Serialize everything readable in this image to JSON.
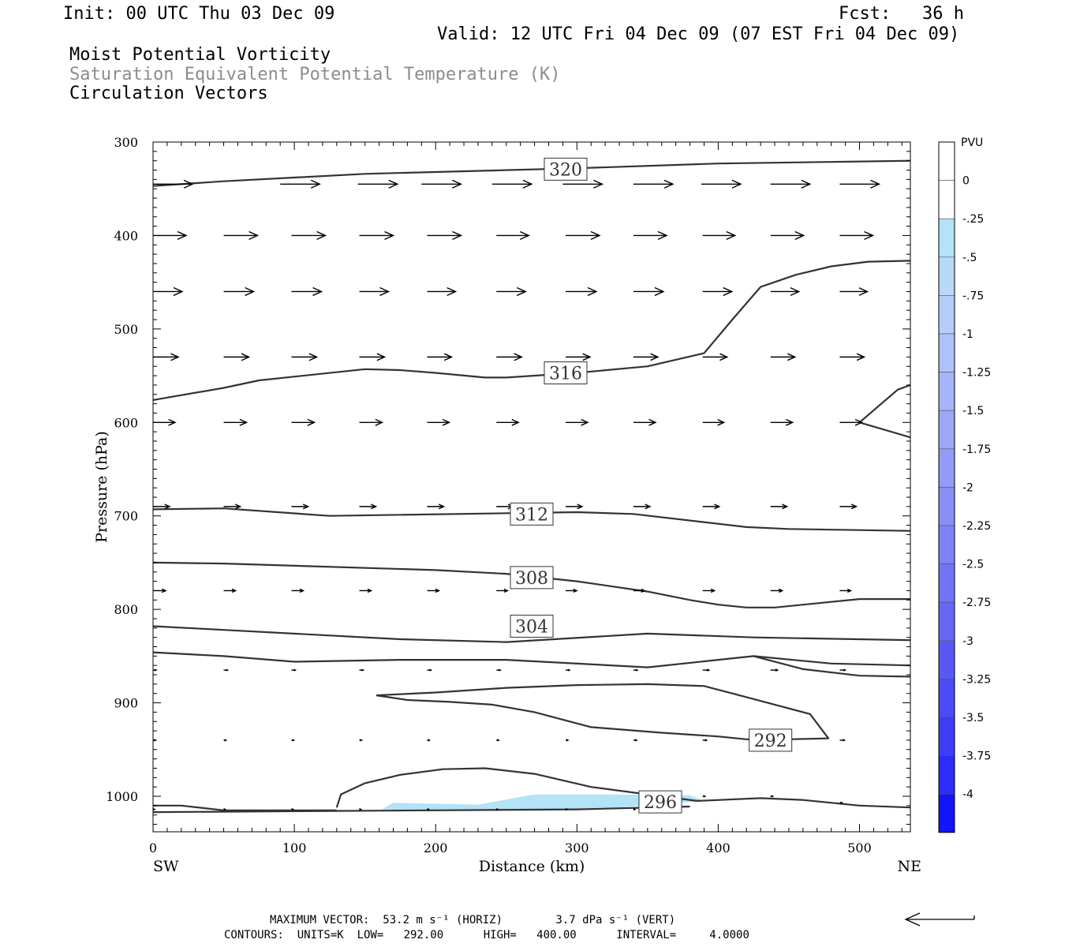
{
  "header": {
    "init": "Init: 00 UTC Thu 03 Dec 09",
    "fcst": "Fcst:   36 h",
    "valid": "Valid: 12 UTC Fri 04 Dec 09 (07 EST Fri 04 Dec 09)",
    "field1": "Moist Potential Vorticity",
    "field2": "Saturation Equivalent Potential Temperature (K)",
    "field3": "Circulation Vectors"
  },
  "colors": {
    "field2_text": "#8c8c8c",
    "contour": "#333333",
    "shade": "#b4e2f6",
    "border": "#000000"
  },
  "footer": {
    "max_vector": "MAXIMUM VECTOR:  53.2 m s⁻¹ (HORIZ)        3.7 dPa s⁻¹ (VERT)",
    "contours": "CONTOURS:  UNITS=K  LOW=   292.00      HIGH=   400.00      INTERVAL=     4.0000"
  },
  "chart_data": {
    "type": "cross-section",
    "xlabel": "Distance (km)",
    "ylabel": "Pressure (hPa)",
    "x_range": [
      0,
      536
    ],
    "y_range": [
      300,
      1038
    ],
    "x_ticks": [
      0,
      100,
      200,
      300,
      400,
      500
    ],
    "x_tick_labels": [
      "0",
      "100",
      "200",
      "300",
      "400",
      "500"
    ],
    "y_ticks": [
      300,
      400,
      500,
      600,
      700,
      800,
      900,
      1000
    ],
    "y_tick_labels": [
      "300",
      "400",
      "500",
      "600",
      "700",
      "800",
      "900",
      "1000"
    ],
    "endpoints": {
      "left": "SW",
      "right": "NE"
    },
    "colorbar": {
      "title": "PVU",
      "levels": [
        "0",
        "-.25",
        "-.5",
        "-.75",
        "-1",
        "-1.25",
        "-1.5",
        "-1.75",
        "-2",
        "-2.25",
        "-2.5",
        "-2.75",
        "-3",
        "-3.25",
        "-3.5",
        "-3.75",
        "-4"
      ],
      "colors": [
        "#ffffff",
        "#ffffff",
        "#b4e2f6",
        "#b8d9f7",
        "#b4cef7",
        "#adc2f7",
        "#a6b5f7",
        "#9da7f6",
        "#949bf6",
        "#8a8ef6",
        "#7f81f7",
        "#7373f7",
        "#6667f7",
        "#5958f7",
        "#4b4bf7",
        "#3d3df8",
        "#2c2df9",
        "#1414fb"
      ]
    },
    "contours": [
      {
        "label": "320",
        "points": [
          [
            0,
            347
          ],
          [
            50,
            342
          ],
          [
            150,
            334
          ],
          [
            300,
            328
          ],
          [
            400,
            323
          ],
          [
            536,
            320
          ]
        ]
      },
      {
        "label": "",
        "points": [
          [
            0,
            576
          ],
          [
            50,
            563
          ],
          [
            75,
            555
          ],
          [
            150,
            543
          ],
          [
            175,
            544
          ],
          [
            200,
            547
          ],
          [
            235,
            552
          ],
          [
            250,
            552
          ],
          [
            300,
            547
          ],
          [
            350,
            540
          ],
          [
            390,
            526
          ],
          [
            410,
            490
          ],
          [
            430,
            455
          ],
          [
            455,
            442
          ],
          [
            480,
            433
          ],
          [
            506,
            428
          ],
          [
            536,
            427
          ]
        ]
      },
      {
        "label": "",
        "points": [
          [
            500,
            600
          ],
          [
            527,
            565
          ],
          [
            536,
            560
          ]
        ]
      },
      {
        "label": "",
        "points": [
          [
            500,
            600
          ],
          [
            536,
            616
          ]
        ]
      },
      {
        "label": "312",
        "points": [
          [
            0,
            693
          ],
          [
            50,
            692
          ],
          [
            125,
            700
          ],
          [
            300,
            696
          ],
          [
            340,
            698
          ],
          [
            420,
            712
          ],
          [
            450,
            714
          ],
          [
            536,
            716
          ]
        ]
      },
      {
        "label": "308",
        "points": [
          [
            0,
            750
          ],
          [
            50,
            751
          ],
          [
            200,
            758
          ],
          [
            250,
            762
          ],
          [
            300,
            770
          ],
          [
            350,
            781
          ],
          [
            380,
            790
          ],
          [
            400,
            795
          ],
          [
            420,
            798
          ],
          [
            440,
            798
          ],
          [
            500,
            789
          ],
          [
            536,
            789
          ]
        ]
      },
      {
        "label": "304",
        "points": [
          [
            0,
            818
          ],
          [
            50,
            822
          ],
          [
            175,
            832
          ],
          [
            250,
            835
          ],
          [
            350,
            826
          ],
          [
            425,
            830
          ],
          [
            536,
            833
          ]
        ]
      },
      {
        "label": "",
        "points": [
          [
            0,
            846
          ],
          [
            50,
            850
          ],
          [
            100,
            856
          ],
          [
            175,
            854
          ],
          [
            250,
            854
          ],
          [
            350,
            862
          ],
          [
            425,
            850
          ],
          [
            480,
            858
          ],
          [
            536,
            860
          ]
        ]
      },
      {
        "label": "",
        "points": [
          [
            425,
            850
          ],
          [
            460,
            864
          ],
          [
            500,
            871
          ],
          [
            536,
            872
          ]
        ]
      },
      {
        "label": "292",
        "points": [
          [
            158,
            892
          ],
          [
            200,
            889
          ],
          [
            250,
            884
          ],
          [
            300,
            881
          ],
          [
            350,
            880
          ],
          [
            390,
            882
          ],
          [
            410,
            890
          ],
          [
            440,
            902
          ],
          [
            465,
            912
          ],
          [
            478,
            938
          ],
          [
            450,
            939
          ],
          [
            420,
            939
          ],
          [
            400,
            936
          ],
          [
            360,
            932
          ],
          [
            310,
            926
          ],
          [
            270,
            910
          ],
          [
            240,
            902
          ],
          [
            210,
            899
          ],
          [
            180,
            897
          ],
          [
            158,
            892
          ]
        ]
      },
      {
        "label": "296",
        "points": [
          [
            130,
            1012
          ],
          [
            133,
            998
          ],
          [
            150,
            986
          ],
          [
            175,
            977
          ],
          [
            205,
            971
          ],
          [
            235,
            970
          ],
          [
            270,
            976
          ],
          [
            310,
            990
          ],
          [
            350,
            998
          ],
          [
            385,
            1005
          ],
          [
            430,
            1002
          ],
          [
            460,
            1004
          ],
          [
            500,
            1010
          ],
          [
            536,
            1012
          ]
        ]
      },
      {
        "label": "",
        "points": [
          [
            0,
            1010
          ],
          [
            20,
            1010
          ],
          [
            50,
            1015
          ],
          [
            130,
            1015
          ]
        ]
      },
      {
        "label": "",
        "points": [
          [
            0,
            1017
          ],
          [
            200,
            1015
          ],
          [
            300,
            1014
          ],
          [
            380,
            1011
          ]
        ]
      }
    ],
    "label_positions": {
      "320": [
        292,
        329
      ],
      "316": [
        292,
        547
      ],
      "312": [
        268,
        698
      ],
      "308": [
        268,
        766
      ],
      "304": [
        268,
        818
      ],
      "292": [
        437,
        940
      ],
      "296": [
        359,
        1006
      ]
    },
    "shaded_regions": [
      {
        "pvu": "-.25 to -.5",
        "points": [
          [
            162,
            1014
          ],
          [
            170,
            1007
          ],
          [
            200,
            1008
          ],
          [
            230,
            1009
          ],
          [
            270,
            998
          ],
          [
            320,
            998
          ],
          [
            380,
            999
          ],
          [
            390,
            1005
          ],
          [
            330,
            1012
          ],
          [
            270,
            1014
          ],
          [
            200,
            1015
          ],
          [
            162,
            1014
          ]
        ]
      }
    ],
    "vectors": [
      {
        "level": 340,
        "rows": [
          [
            0,
            345,
            50
          ],
          [
            90,
            345,
            50
          ],
          [
            145,
            345,
            50
          ],
          [
            190,
            345,
            50
          ],
          [
            240,
            345,
            50
          ],
          [
            290,
            345,
            50
          ],
          [
            340,
            345,
            50
          ],
          [
            388,
            345,
            50
          ],
          [
            437,
            345,
            50
          ],
          [
            486,
            345,
            50
          ]
        ]
      },
      {
        "level": 400,
        "rows": [
          [
            0,
            400,
            42
          ],
          [
            50,
            400,
            43
          ],
          [
            98,
            400,
            43
          ],
          [
            146,
            400,
            43
          ],
          [
            194,
            400,
            43
          ],
          [
            243,
            400,
            41
          ],
          [
            292,
            400,
            43
          ],
          [
            340,
            400,
            42
          ],
          [
            389,
            400,
            41
          ],
          [
            437,
            400,
            42
          ],
          [
            486,
            400,
            42
          ]
        ]
      },
      {
        "level": 460,
        "rows": [
          [
            0,
            460,
            37
          ],
          [
            50,
            460,
            38
          ],
          [
            98,
            460,
            38
          ],
          [
            146,
            460,
            37
          ],
          [
            194,
            460,
            36
          ],
          [
            243,
            460,
            37
          ],
          [
            292,
            460,
            39
          ],
          [
            340,
            460,
            38
          ],
          [
            389,
            460,
            37
          ],
          [
            437,
            460,
            36
          ],
          [
            486,
            460,
            35
          ]
        ]
      },
      {
        "level": 530,
        "rows": [
          [
            0,
            530,
            32
          ],
          [
            50,
            530,
            32
          ],
          [
            98,
            530,
            32
          ],
          [
            146,
            530,
            32
          ],
          [
            194,
            530,
            31
          ],
          [
            243,
            530,
            32
          ],
          [
            292,
            530,
            31
          ],
          [
            340,
            530,
            31
          ],
          [
            389,
            530,
            31
          ],
          [
            437,
            530,
            31
          ],
          [
            486,
            530,
            31
          ]
        ]
      },
      {
        "level": 600,
        "rows": [
          [
            0,
            600,
            28
          ],
          [
            50,
            600,
            29
          ],
          [
            98,
            600,
            29
          ],
          [
            146,
            600,
            29
          ],
          [
            194,
            600,
            28
          ],
          [
            243,
            600,
            28
          ],
          [
            292,
            600,
            28
          ],
          [
            340,
            600,
            28
          ],
          [
            389,
            600,
            27
          ],
          [
            437,
            600,
            28
          ],
          [
            486,
            600,
            28
          ]
        ]
      },
      {
        "level": 690,
        "rows": [
          [
            0,
            690,
            21
          ],
          [
            50,
            690,
            21
          ],
          [
            98,
            690,
            21
          ],
          [
            146,
            690,
            21
          ],
          [
            194,
            690,
            21
          ],
          [
            243,
            690,
            21
          ],
          [
            292,
            690,
            21
          ],
          [
            340,
            690,
            21
          ],
          [
            389,
            690,
            21
          ],
          [
            437,
            690,
            21
          ],
          [
            486,
            690,
            21
          ]
        ]
      },
      {
        "level": 780,
        "rows": [
          [
            0,
            780,
            16
          ],
          [
            50,
            780,
            15
          ],
          [
            98,
            780,
            15
          ],
          [
            146,
            780,
            15
          ],
          [
            194,
            780,
            15
          ],
          [
            243,
            780,
            14
          ],
          [
            292,
            780,
            14
          ],
          [
            340,
            780,
            14
          ],
          [
            389,
            780,
            15
          ],
          [
            437,
            780,
            15
          ],
          [
            486,
            780,
            14
          ]
        ]
      },
      {
        "level": 865,
        "rows": [
          [
            0,
            865,
            4
          ],
          [
            50,
            865,
            5
          ],
          [
            98,
            865,
            5
          ],
          [
            146,
            865,
            5
          ],
          [
            194,
            865,
            5
          ],
          [
            243,
            865,
            5
          ],
          [
            292,
            865,
            5
          ],
          [
            340,
            865,
            5
          ],
          [
            389,
            865,
            8
          ],
          [
            437,
            865,
            9
          ],
          [
            486,
            865,
            7
          ]
        ]
      },
      {
        "level": 940,
        "rows": [
          [
            0,
            940,
            3
          ],
          [
            50,
            940,
            3
          ],
          [
            98,
            940,
            3
          ],
          [
            146,
            940,
            3
          ],
          [
            194,
            940,
            3
          ],
          [
            243,
            940,
            3
          ],
          [
            292,
            940,
            3
          ],
          [
            340,
            940,
            4
          ],
          [
            389,
            940,
            5
          ],
          [
            437,
            940,
            6
          ],
          [
            486,
            940,
            6
          ]
        ]
      },
      {
        "level": 1000,
        "rows": [
          [
            0,
            1014,
            2
          ],
          [
            50,
            1014,
            2
          ],
          [
            98,
            1014,
            2
          ],
          [
            146,
            1014,
            2
          ],
          [
            194,
            1014,
            2
          ],
          [
            243,
            1014,
            2
          ],
          [
            292,
            1014,
            2
          ],
          [
            340,
            1014,
            2
          ],
          [
            389,
            1000,
            3
          ],
          [
            437,
            1000,
            3
          ],
          [
            486,
            1007,
            3
          ]
        ]
      }
    ]
  }
}
